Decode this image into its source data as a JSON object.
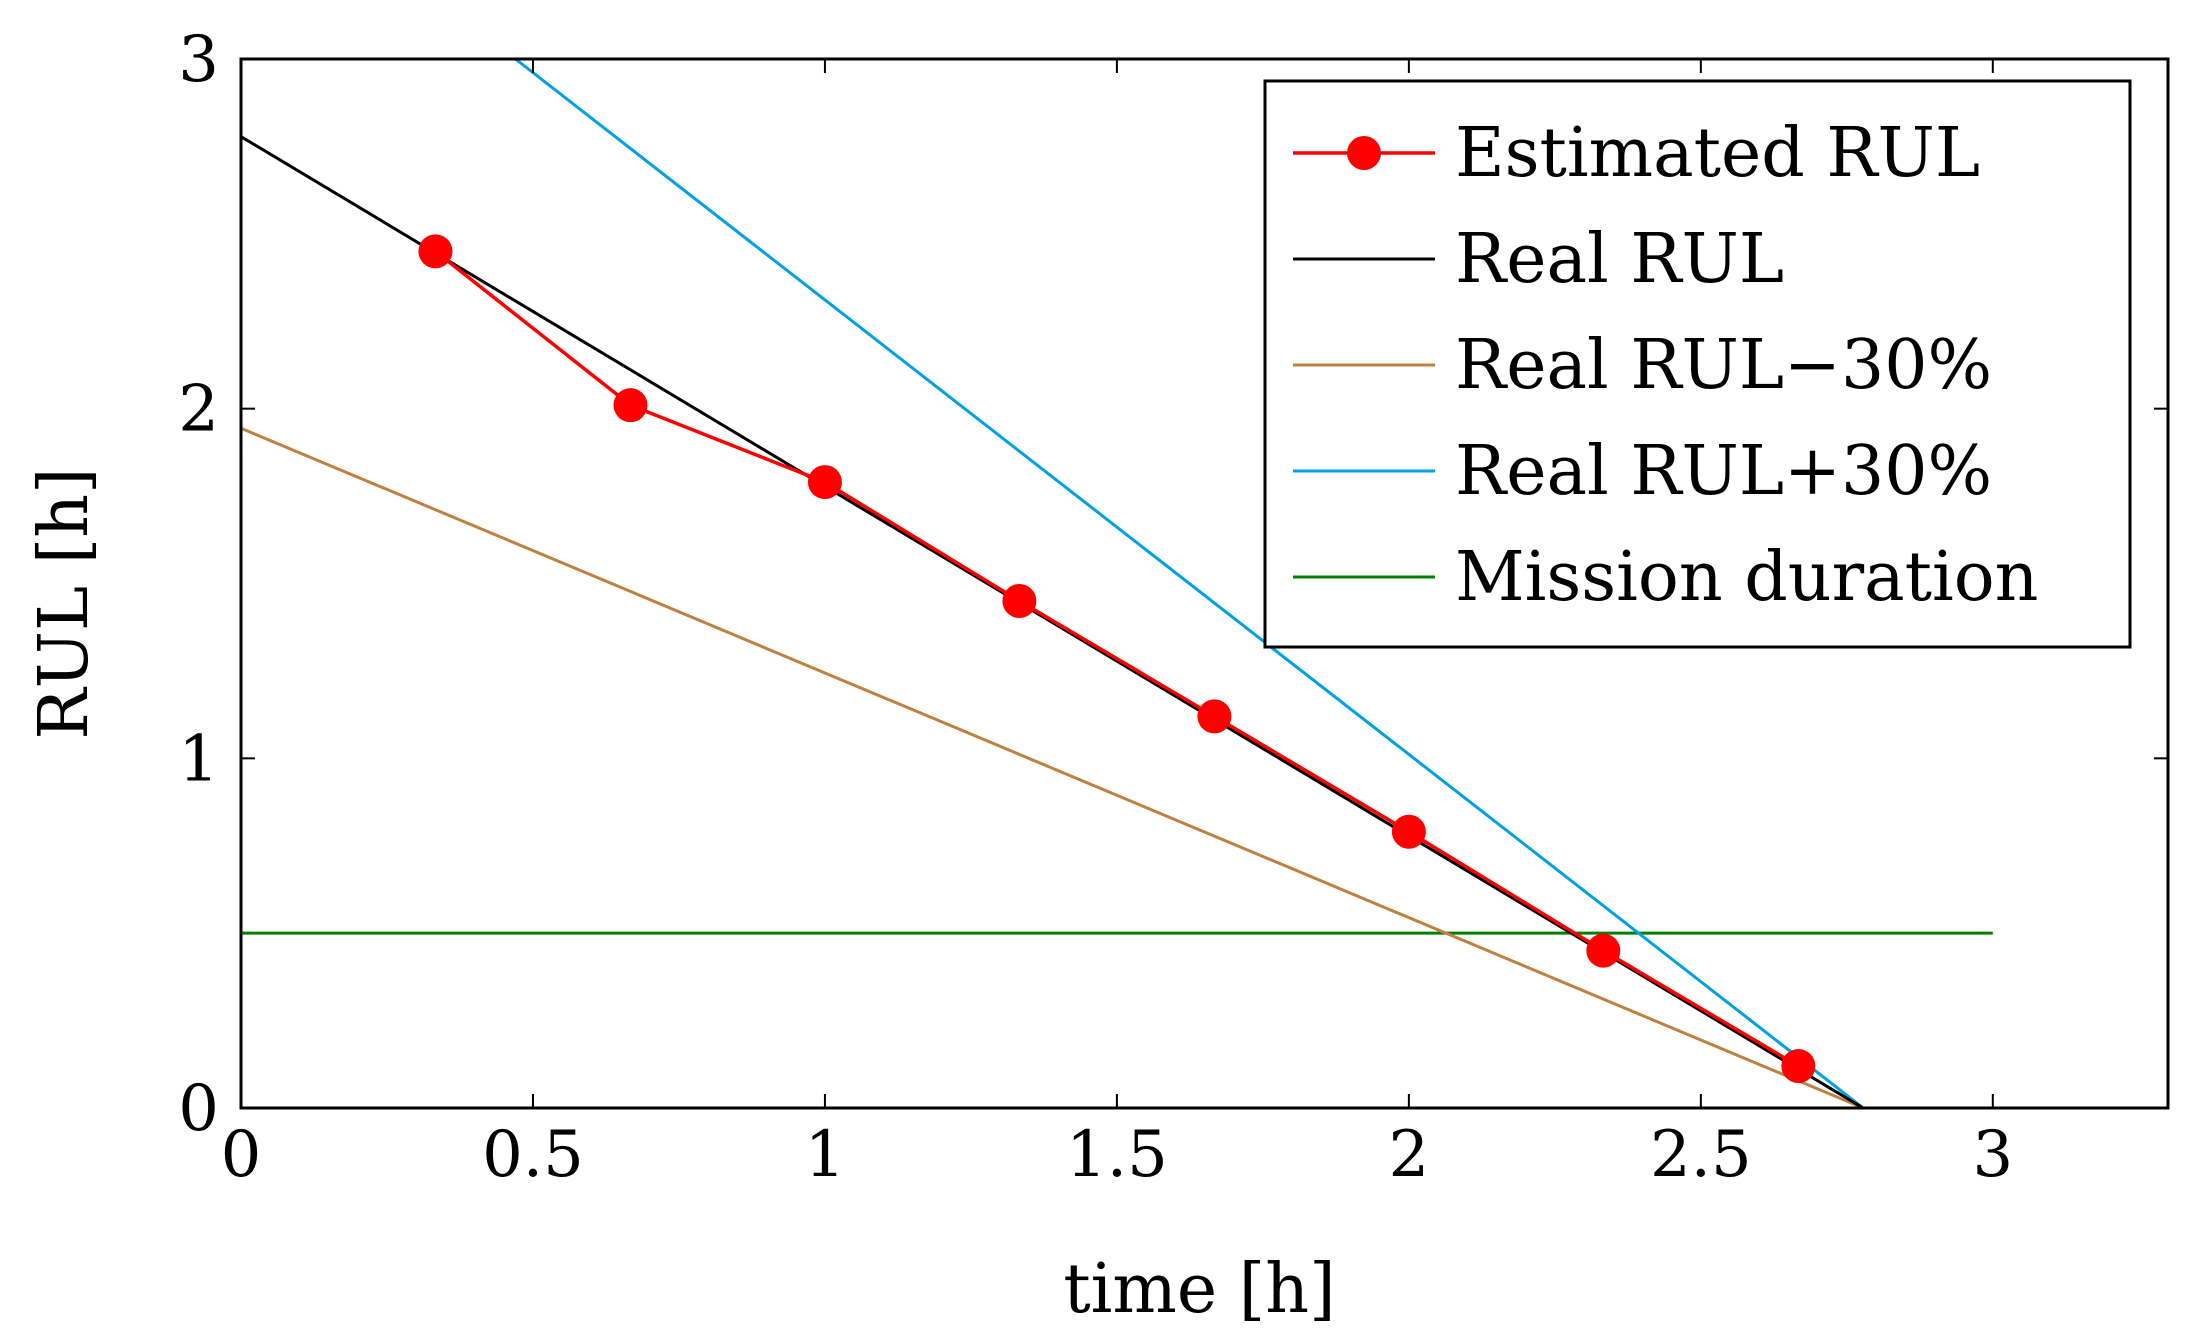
{
  "chart_data": {
    "type": "line",
    "title": "",
    "xlabel": "time [h]",
    "ylabel": "RUL [h]",
    "xlim": [
      0,
      3.3
    ],
    "ylim": [
      0,
      3
    ],
    "xticks": [
      0,
      0.5,
      1,
      1.5,
      2,
      2.5,
      3
    ],
    "xtick_labels": [
      "0",
      "0.5",
      "1",
      "1.5",
      "2",
      "2.5",
      "3"
    ],
    "yticks": [
      0,
      1,
      2,
      3
    ],
    "ytick_labels": [
      "0",
      "1",
      "2",
      "3"
    ],
    "grid": false,
    "legend_position": "top-right",
    "series": [
      {
        "name": "Estimated RUL",
        "color": "#ff0000",
        "marker": "circle",
        "x": [
          0.333,
          0.667,
          1.0,
          1.333,
          1.667,
          2.0,
          2.333,
          2.667
        ],
        "y": [
          2.45,
          2.01,
          1.79,
          1.45,
          1.12,
          0.79,
          0.45,
          0.12
        ]
      },
      {
        "name": "Real RUL",
        "color": "#000000",
        "marker": "none",
        "x": [
          0,
          2.778
        ],
        "y": [
          2.778,
          0
        ]
      },
      {
        "name": "Real RUL−30%",
        "color": "#bf8040",
        "marker": "none",
        "x": [
          0,
          2.778
        ],
        "y": [
          1.944,
          0
        ]
      },
      {
        "name": "Real RUL+30%",
        "color": "#00a0e6",
        "marker": "none",
        "x": [
          0.47,
          2.778
        ],
        "y": [
          3.0,
          0
        ]
      },
      {
        "name": "Mission duration",
        "color": "#008000",
        "marker": "none",
        "x": [
          0,
          3.0
        ],
        "y": [
          0.5,
          0.5
        ]
      }
    ]
  }
}
